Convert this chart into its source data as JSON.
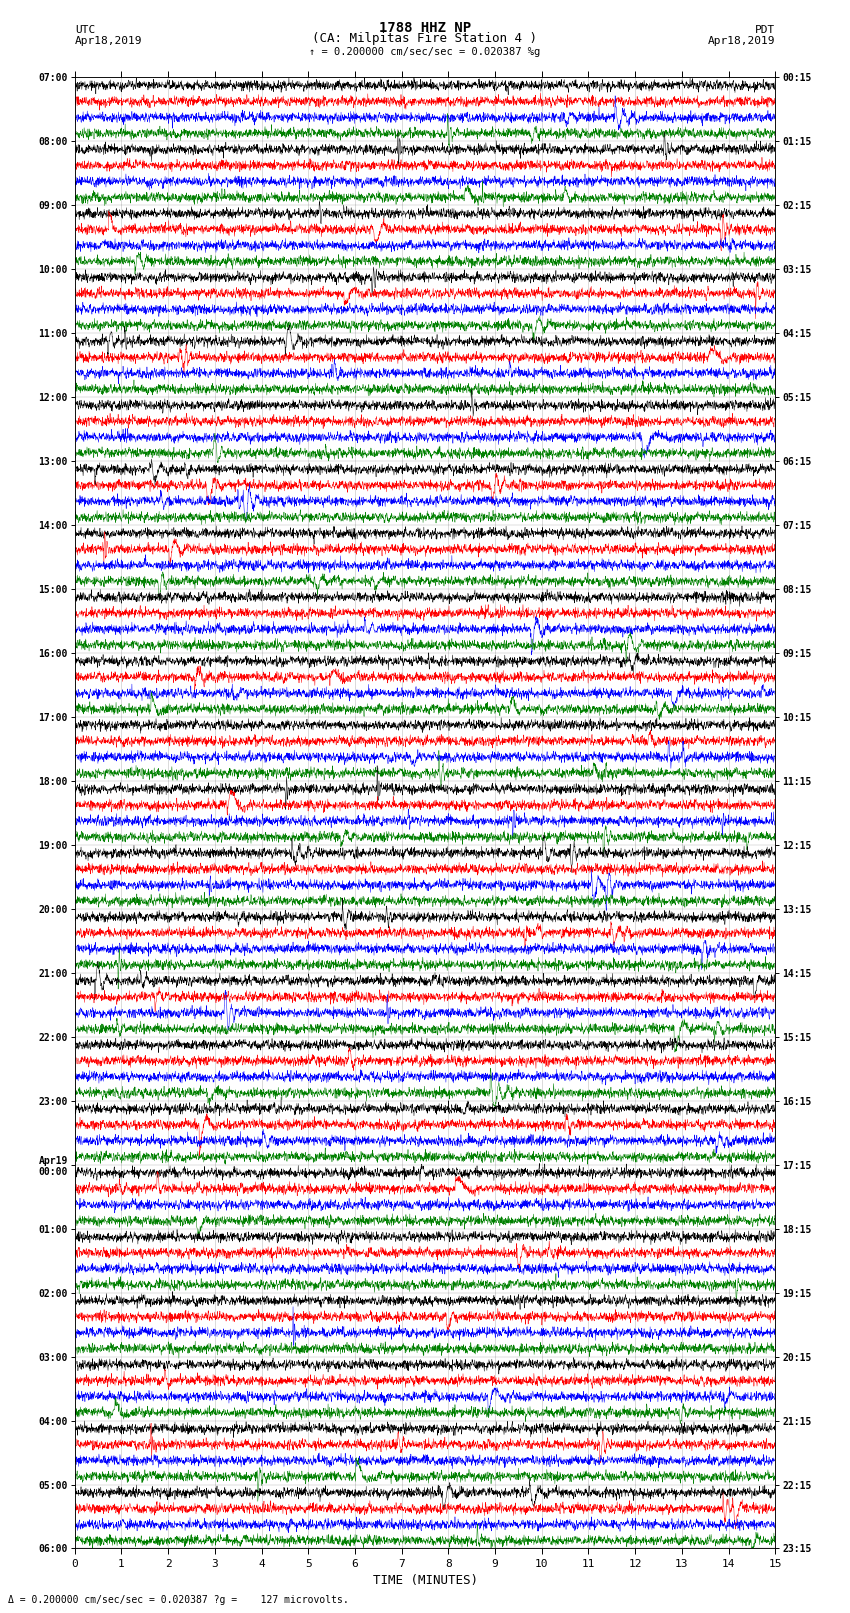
{
  "title_line1": "1788 HHZ NP",
  "title_line2": "(CA: Milpitas Fire Station 4 )",
  "label_left_top": "UTC",
  "label_left_date": "Apr18,2019",
  "label_right_top": "PDT",
  "label_right_date": "Apr18,2019",
  "scale_bar_text": "= 0.200000 cm/sec/sec = 0.020387 ?g",
  "bottom_note": "= 0.200000 cm/sec/sec = 0.020387 ?g =    127 microvolts.",
  "xlabel": "TIME (MINUTES)",
  "xmin": 0,
  "xmax": 15,
  "xticks": [
    0,
    1,
    2,
    3,
    4,
    5,
    6,
    7,
    8,
    9,
    10,
    11,
    12,
    13,
    14,
    15
  ],
  "background_color": "#ffffff",
  "trace_colors": [
    "black",
    "red",
    "blue",
    "green"
  ],
  "num_hours": 23,
  "traces_per_hour": 4,
  "fig_width": 8.5,
  "fig_height": 16.13,
  "utc_labels": [
    "07:00",
    "08:00",
    "09:00",
    "10:00",
    "11:00",
    "12:00",
    "13:00",
    "14:00",
    "15:00",
    "16:00",
    "17:00",
    "18:00",
    "19:00",
    "20:00",
    "21:00",
    "22:00",
    "23:00",
    "Apr19\n00:00",
    "01:00",
    "02:00",
    "03:00",
    "04:00",
    "05:00",
    "06:00"
  ],
  "pdt_labels": [
    "00:15",
    "01:15",
    "02:15",
    "03:15",
    "04:15",
    "05:15",
    "06:15",
    "07:15",
    "08:15",
    "09:15",
    "10:15",
    "11:15",
    "12:15",
    "13:15",
    "14:15",
    "15:15",
    "16:15",
    "17:15",
    "18:15",
    "19:15",
    "20:15",
    "21:15",
    "22:15",
    "23:15"
  ]
}
